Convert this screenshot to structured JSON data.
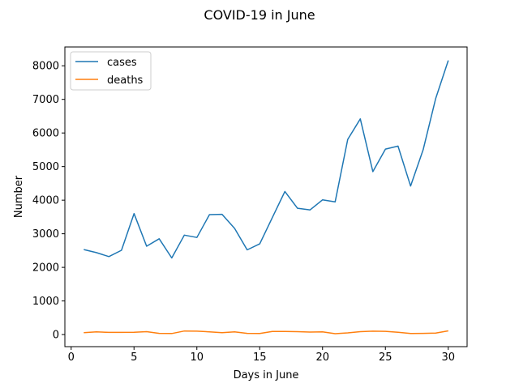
{
  "chart_data": {
    "type": "line",
    "title": "COVID-19 in June",
    "xlabel": "Days in June",
    "ylabel": "Number",
    "xlim": [
      -0.5,
      31.5
    ],
    "ylim": [
      -360,
      8560
    ],
    "xticks": [
      0,
      5,
      10,
      15,
      20,
      25,
      30
    ],
    "yticks": [
      0,
      1000,
      2000,
      3000,
      4000,
      5000,
      6000,
      7000,
      8000
    ],
    "grid": false,
    "legend_position": "upper-left",
    "x": [
      1,
      2,
      3,
      4,
      5,
      6,
      7,
      8,
      9,
      10,
      11,
      12,
      13,
      14,
      15,
      16,
      17,
      18,
      19,
      20,
      21,
      22,
      23,
      24,
      25,
      26,
      27,
      28,
      29,
      30
    ],
    "series": [
      {
        "name": "cases",
        "color": "#1f77b4",
        "values": [
          2530,
          2440,
          2320,
          2510,
          3600,
          2630,
          2850,
          2280,
          2960,
          2890,
          3570,
          3580,
          3160,
          2520,
          2700,
          3480,
          4260,
          3760,
          3710,
          4010,
          3950,
          5810,
          6420,
          4850,
          5520,
          5610,
          4420,
          5500,
          7030,
          8160
        ]
      },
      {
        "name": "deaths",
        "color": "#ff7f0e",
        "values": [
          55,
          80,
          65,
          65,
          70,
          85,
          35,
          30,
          105,
          100,
          80,
          55,
          80,
          35,
          30,
          90,
          90,
          85,
          75,
          80,
          25,
          50,
          85,
          100,
          95,
          70,
          30,
          35,
          45,
          110
        ]
      }
    ]
  }
}
